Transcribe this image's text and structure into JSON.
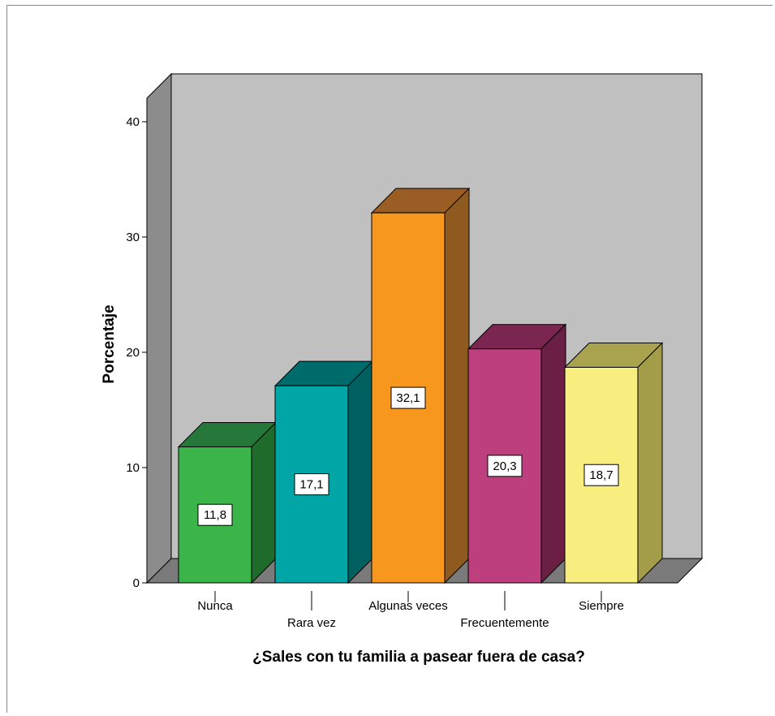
{
  "chart_data": {
    "type": "bar",
    "categories": [
      "Nunca",
      "Rara vez",
      "Algunas veces",
      "Frecuentemente",
      "Siempre"
    ],
    "values": [
      11.8,
      17.1,
      32.1,
      20.3,
      18.7
    ],
    "value_labels": [
      "11,8",
      "17,1",
      "32,1",
      "20,3",
      "18,7"
    ],
    "xlabel": "¿Sales con tu familia a pasear fuera de casa?",
    "ylabel": "Porcentaje",
    "ylim": [
      0,
      40
    ],
    "yticks": [
      0,
      10,
      20,
      30,
      40
    ],
    "three_d": true,
    "grid": false,
    "colors": {
      "wall": "#c0c0c0",
      "side_wall": "#8c8c8c",
      "floor": "#7a7a7a",
      "bars": [
        {
          "front": "#3bb54a",
          "side": "#1f6b2c",
          "top": "#25783a"
        },
        {
          "front": "#00a6a6",
          "side": "#006060",
          "top": "#006b6b"
        },
        {
          "front": "#f7971e",
          "side": "#8f5a1f",
          "top": "#9a5e24"
        },
        {
          "front": "#bd3f7e",
          "side": "#6b1f44",
          "top": "#7a2650"
        },
        {
          "front": "#f7ee7f",
          "side": "#a39d4a",
          "top": "#a9a24f"
        }
      ]
    }
  }
}
